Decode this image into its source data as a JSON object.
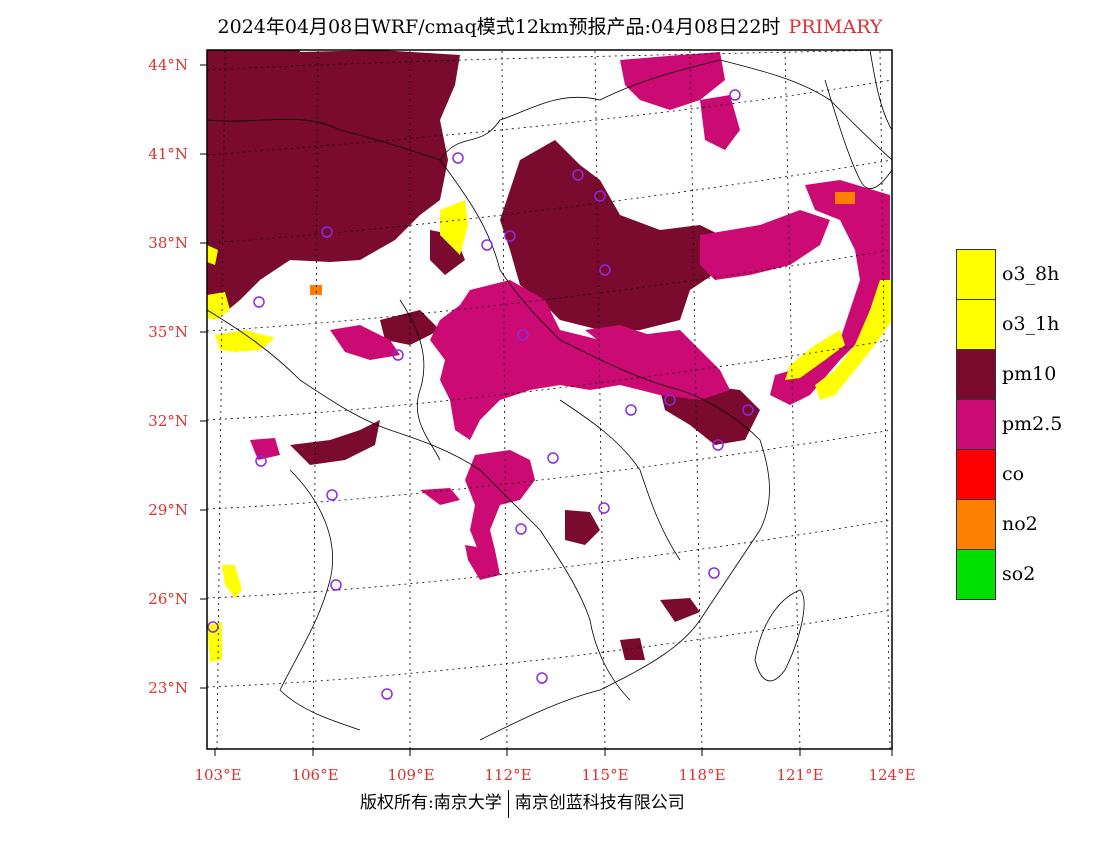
{
  "title": {
    "main": "2024年04月08日WRF/cmaq模式12km预报产品:04月08日22时",
    "tag": "PRIMARY"
  },
  "axes": {
    "lat_labels": [
      "44°N",
      "41°N",
      "38°N",
      "35°N",
      "32°N",
      "29°N",
      "26°N",
      "23°N"
    ],
    "lon_labels": [
      "103°E",
      "106°E",
      "109°E",
      "112°E",
      "115°E",
      "118°E",
      "121°E",
      "124°E"
    ]
  },
  "legend": [
    {
      "label": "o3_8h",
      "color": "#ffff00"
    },
    {
      "label": "o3_1h",
      "color": "#ffff00"
    },
    {
      "label": "pm10",
      "color": "#7a0a2e"
    },
    {
      "label": "pm2.5",
      "color": "#cc0a73"
    },
    {
      "label": "co",
      "color": "#ff0000"
    },
    {
      "label": "no2",
      "color": "#ff7f00"
    },
    {
      "label": "so2",
      "color": "#00e000"
    }
  ],
  "footer": {
    "left": "版权所有:南京大学",
    "right": "南京创蓝科技有限公司"
  }
}
